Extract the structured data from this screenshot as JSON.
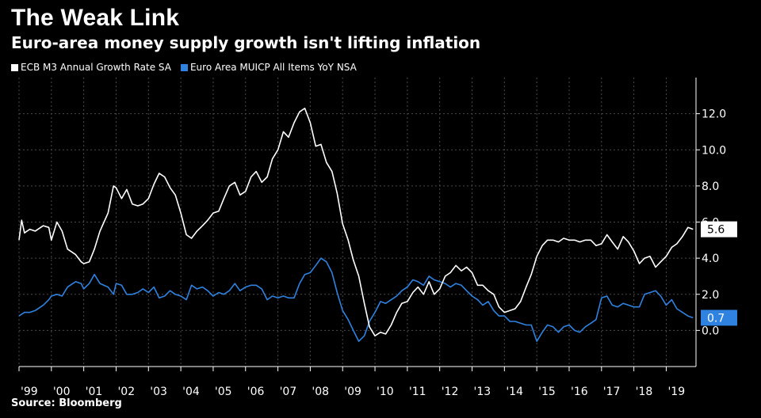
{
  "header": {
    "title": "The Weak Link",
    "subtitle": "Euro-area money supply growth isn't lifting inflation"
  },
  "source": "Source: Bloomberg",
  "colors": {
    "background": "#000000",
    "m3": "#ffffff",
    "cpi": "#2f82e0",
    "grid": "#4a4a4a"
  },
  "chart_data": {
    "type": "line",
    "grid": true,
    "legend_position": "top-left",
    "y_axis_side": "right",
    "ylim": [
      -2,
      14
    ],
    "yticks": [
      0,
      2,
      4,
      6,
      8,
      10,
      12
    ],
    "ytick_labels": [
      "0.0",
      "2.0",
      "4.0",
      "6.0",
      "8.0",
      "10.0",
      "12.0"
    ],
    "xlim": [
      1999.0,
      2019.92
    ],
    "xticks": [
      1999,
      2000,
      2001,
      2002,
      2003,
      2004,
      2005,
      2006,
      2007,
      2008,
      2009,
      2010,
      2011,
      2012,
      2013,
      2014,
      2015,
      2016,
      2017,
      2018,
      2019
    ],
    "xtick_labels": [
      "'99",
      "'00",
      "'01",
      "'02",
      "'03",
      "'04",
      "'05",
      "'06",
      "'07",
      "'08",
      "'09",
      "'10",
      "'11",
      "'12",
      "'13",
      "'14",
      "'15",
      "'16",
      "'17",
      "'18",
      "'19"
    ],
    "series": [
      {
        "name": "ECB M3 Annual Growth Rate SA",
        "color": "#ffffff",
        "last_value_label": "5.6",
        "points": [
          [
            1999.0,
            5.0
          ],
          [
            1999.08,
            6.1
          ],
          [
            1999.17,
            5.4
          ],
          [
            1999.33,
            5.6
          ],
          [
            1999.5,
            5.5
          ],
          [
            1999.75,
            5.8
          ],
          [
            1999.92,
            5.7
          ],
          [
            2000.0,
            5.0
          ],
          [
            2000.17,
            6.0
          ],
          [
            2000.33,
            5.5
          ],
          [
            2000.5,
            4.5
          ],
          [
            2000.75,
            4.2
          ],
          [
            2000.92,
            3.8
          ],
          [
            2001.0,
            3.7
          ],
          [
            2001.17,
            3.8
          ],
          [
            2001.33,
            4.5
          ],
          [
            2001.5,
            5.5
          ],
          [
            2001.75,
            6.5
          ],
          [
            2001.92,
            8.0
          ],
          [
            2002.0,
            7.9
          ],
          [
            2002.17,
            7.3
          ],
          [
            2002.33,
            7.8
          ],
          [
            2002.5,
            7.0
          ],
          [
            2002.67,
            6.9
          ],
          [
            2002.83,
            7.0
          ],
          [
            2003.0,
            7.3
          ],
          [
            2003.17,
            8.1
          ],
          [
            2003.33,
            8.7
          ],
          [
            2003.5,
            8.5
          ],
          [
            2003.67,
            7.9
          ],
          [
            2003.83,
            7.5
          ],
          [
            2004.0,
            6.5
          ],
          [
            2004.17,
            5.3
          ],
          [
            2004.33,
            5.1
          ],
          [
            2004.5,
            5.5
          ],
          [
            2004.67,
            5.8
          ],
          [
            2004.83,
            6.1
          ],
          [
            2005.0,
            6.5
          ],
          [
            2005.17,
            6.6
          ],
          [
            2005.33,
            7.3
          ],
          [
            2005.5,
            8.0
          ],
          [
            2005.67,
            8.2
          ],
          [
            2005.83,
            7.5
          ],
          [
            2006.0,
            7.7
          ],
          [
            2006.17,
            8.5
          ],
          [
            2006.33,
            8.8
          ],
          [
            2006.5,
            8.2
          ],
          [
            2006.67,
            8.5
          ],
          [
            2006.83,
            9.5
          ],
          [
            2007.0,
            10.0
          ],
          [
            2007.17,
            11.0
          ],
          [
            2007.33,
            10.7
          ],
          [
            2007.5,
            11.5
          ],
          [
            2007.67,
            12.1
          ],
          [
            2007.83,
            12.3
          ],
          [
            2008.0,
            11.5
          ],
          [
            2008.17,
            10.2
          ],
          [
            2008.33,
            10.3
          ],
          [
            2008.5,
            9.3
          ],
          [
            2008.67,
            8.8
          ],
          [
            2008.83,
            7.6
          ],
          [
            2009.0,
            5.9
          ],
          [
            2009.17,
            5.0
          ],
          [
            2009.33,
            3.9
          ],
          [
            2009.5,
            3.0
          ],
          [
            2009.67,
            1.5
          ],
          [
            2009.83,
            0.2
          ],
          [
            2010.0,
            -0.3
          ],
          [
            2010.17,
            -0.1
          ],
          [
            2010.33,
            -0.2
          ],
          [
            2010.5,
            0.3
          ],
          [
            2010.67,
            1.0
          ],
          [
            2010.83,
            1.5
          ],
          [
            2011.0,
            1.6
          ],
          [
            2011.17,
            2.1
          ],
          [
            2011.33,
            2.4
          ],
          [
            2011.5,
            2.0
          ],
          [
            2011.67,
            2.7
          ],
          [
            2011.83,
            2.0
          ],
          [
            2012.0,
            2.3
          ],
          [
            2012.17,
            3.0
          ],
          [
            2012.33,
            3.2
          ],
          [
            2012.5,
            3.6
          ],
          [
            2012.67,
            3.3
          ],
          [
            2012.83,
            3.5
          ],
          [
            2013.0,
            3.2
          ],
          [
            2013.17,
            2.5
          ],
          [
            2013.33,
            2.5
          ],
          [
            2013.5,
            2.2
          ],
          [
            2013.67,
            2.0
          ],
          [
            2013.83,
            1.3
          ],
          [
            2014.0,
            1.0
          ],
          [
            2014.17,
            1.1
          ],
          [
            2014.33,
            1.2
          ],
          [
            2014.5,
            1.6
          ],
          [
            2014.67,
            2.4
          ],
          [
            2014.83,
            3.1
          ],
          [
            2015.0,
            4.1
          ],
          [
            2015.17,
            4.7
          ],
          [
            2015.33,
            5.0
          ],
          [
            2015.5,
            5.0
          ],
          [
            2015.67,
            4.9
          ],
          [
            2015.83,
            5.1
          ],
          [
            2016.0,
            5.0
          ],
          [
            2016.17,
            5.0
          ],
          [
            2016.33,
            4.9
          ],
          [
            2016.5,
            5.0
          ],
          [
            2016.67,
            5.0
          ],
          [
            2016.83,
            4.7
          ],
          [
            2017.0,
            4.8
          ],
          [
            2017.17,
            5.3
          ],
          [
            2017.33,
            4.9
          ],
          [
            2017.5,
            4.5
          ],
          [
            2017.67,
            5.2
          ],
          [
            2017.83,
            4.9
          ],
          [
            2018.0,
            4.4
          ],
          [
            2018.17,
            3.7
          ],
          [
            2018.33,
            4.0
          ],
          [
            2018.5,
            4.1
          ],
          [
            2018.67,
            3.5
          ],
          [
            2018.83,
            3.8
          ],
          [
            2019.0,
            4.1
          ],
          [
            2019.17,
            4.6
          ],
          [
            2019.33,
            4.8
          ],
          [
            2019.5,
            5.2
          ],
          [
            2019.67,
            5.7
          ],
          [
            2019.83,
            5.6
          ]
        ]
      },
      {
        "name": "Euro Area MUICP All Items YoY NSA",
        "color": "#2f82e0",
        "last_value_label": "0.7",
        "points": [
          [
            1999.0,
            0.8
          ],
          [
            1999.17,
            1.0
          ],
          [
            1999.33,
            1.0
          ],
          [
            1999.5,
            1.1
          ],
          [
            1999.75,
            1.4
          ],
          [
            1999.92,
            1.7
          ],
          [
            2000.0,
            1.9
          ],
          [
            2000.17,
            2.0
          ],
          [
            2000.33,
            1.9
          ],
          [
            2000.5,
            2.4
          ],
          [
            2000.75,
            2.7
          ],
          [
            2000.92,
            2.6
          ],
          [
            2001.0,
            2.3
          ],
          [
            2001.17,
            2.6
          ],
          [
            2001.33,
            3.1
          ],
          [
            2001.5,
            2.6
          ],
          [
            2001.75,
            2.4
          ],
          [
            2001.92,
            2.0
          ],
          [
            2002.0,
            2.6
          ],
          [
            2002.17,
            2.5
          ],
          [
            2002.33,
            2.0
          ],
          [
            2002.5,
            2.0
          ],
          [
            2002.67,
            2.1
          ],
          [
            2002.83,
            2.3
          ],
          [
            2003.0,
            2.1
          ],
          [
            2003.17,
            2.4
          ],
          [
            2003.33,
            1.8
          ],
          [
            2003.5,
            1.9
          ],
          [
            2003.67,
            2.2
          ],
          [
            2003.83,
            2.0
          ],
          [
            2004.0,
            1.9
          ],
          [
            2004.17,
            1.7
          ],
          [
            2004.33,
            2.5
          ],
          [
            2004.5,
            2.3
          ],
          [
            2004.67,
            2.4
          ],
          [
            2004.83,
            2.2
          ],
          [
            2005.0,
            1.9
          ],
          [
            2005.17,
            2.1
          ],
          [
            2005.33,
            2.0
          ],
          [
            2005.5,
            2.2
          ],
          [
            2005.67,
            2.6
          ],
          [
            2005.83,
            2.2
          ],
          [
            2006.0,
            2.4
          ],
          [
            2006.17,
            2.5
          ],
          [
            2006.33,
            2.5
          ],
          [
            2006.5,
            2.3
          ],
          [
            2006.67,
            1.7
          ],
          [
            2006.83,
            1.9
          ],
          [
            2007.0,
            1.8
          ],
          [
            2007.17,
            1.9
          ],
          [
            2007.33,
            1.8
          ],
          [
            2007.5,
            1.8
          ],
          [
            2007.67,
            2.6
          ],
          [
            2007.83,
            3.1
          ],
          [
            2008.0,
            3.2
          ],
          [
            2008.17,
            3.6
          ],
          [
            2008.33,
            4.0
          ],
          [
            2008.5,
            3.8
          ],
          [
            2008.67,
            3.2
          ],
          [
            2008.83,
            2.1
          ],
          [
            2009.0,
            1.1
          ],
          [
            2009.17,
            0.6
          ],
          [
            2009.33,
            0.0
          ],
          [
            2009.5,
            -0.6
          ],
          [
            2009.67,
            -0.3
          ],
          [
            2009.83,
            0.5
          ],
          [
            2010.0,
            1.0
          ],
          [
            2010.17,
            1.6
          ],
          [
            2010.33,
            1.5
          ],
          [
            2010.5,
            1.7
          ],
          [
            2010.67,
            1.9
          ],
          [
            2010.83,
            2.2
          ],
          [
            2011.0,
            2.4
          ],
          [
            2011.17,
            2.8
          ],
          [
            2011.33,
            2.7
          ],
          [
            2011.5,
            2.5
          ],
          [
            2011.67,
            3.0
          ],
          [
            2011.83,
            2.8
          ],
          [
            2012.0,
            2.7
          ],
          [
            2012.17,
            2.6
          ],
          [
            2012.33,
            2.4
          ],
          [
            2012.5,
            2.6
          ],
          [
            2012.67,
            2.5
          ],
          [
            2012.83,
            2.2
          ],
          [
            2013.0,
            1.9
          ],
          [
            2013.17,
            1.7
          ],
          [
            2013.33,
            1.4
          ],
          [
            2013.5,
            1.6
          ],
          [
            2013.67,
            1.1
          ],
          [
            2013.83,
            0.8
          ],
          [
            2014.0,
            0.8
          ],
          [
            2014.17,
            0.5
          ],
          [
            2014.33,
            0.5
          ],
          [
            2014.5,
            0.4
          ],
          [
            2014.67,
            0.3
          ],
          [
            2014.83,
            0.3
          ],
          [
            2015.0,
            -0.6
          ],
          [
            2015.17,
            -0.1
          ],
          [
            2015.33,
            0.3
          ],
          [
            2015.5,
            0.2
          ],
          [
            2015.67,
            -0.1
          ],
          [
            2015.83,
            0.2
          ],
          [
            2016.0,
            0.3
          ],
          [
            2016.17,
            0.0
          ],
          [
            2016.33,
            -0.1
          ],
          [
            2016.5,
            0.2
          ],
          [
            2016.67,
            0.4
          ],
          [
            2016.83,
            0.6
          ],
          [
            2017.0,
            1.8
          ],
          [
            2017.17,
            1.9
          ],
          [
            2017.33,
            1.4
          ],
          [
            2017.5,
            1.3
          ],
          [
            2017.67,
            1.5
          ],
          [
            2017.83,
            1.4
          ],
          [
            2018.0,
            1.3
          ],
          [
            2018.17,
            1.3
          ],
          [
            2018.33,
            2.0
          ],
          [
            2018.5,
            2.1
          ],
          [
            2018.67,
            2.2
          ],
          [
            2018.83,
            1.9
          ],
          [
            2019.0,
            1.4
          ],
          [
            2019.17,
            1.7
          ],
          [
            2019.33,
            1.2
          ],
          [
            2019.5,
            1.0
          ],
          [
            2019.67,
            0.8
          ],
          [
            2019.83,
            0.7
          ]
        ]
      }
    ]
  }
}
